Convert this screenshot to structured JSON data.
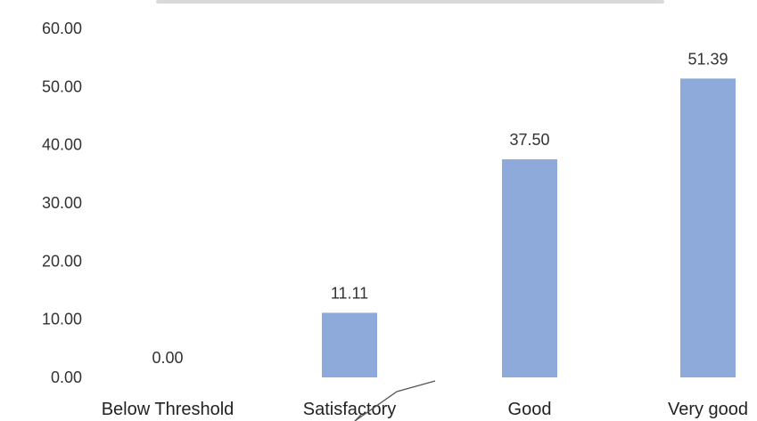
{
  "chart_data": {
    "type": "bar",
    "title": "",
    "xlabel": "",
    "ylabel": "",
    "categories": [
      "Below Threshold",
      "Satisfactory",
      "Good",
      "Very good"
    ],
    "values": [
      0.0,
      11.11,
      37.5,
      51.39
    ],
    "data_labels": [
      "0.00",
      "11.11",
      "37.50",
      "51.39"
    ],
    "ylim": [
      0,
      60
    ],
    "yticks": [
      "0.00",
      "10.00",
      "20.00",
      "30.00",
      "40.00",
      "50.00",
      "60.00"
    ],
    "grid": false,
    "legend": "none",
    "colors": {
      "bar": "#8eaadb",
      "text": "#333333"
    }
  }
}
